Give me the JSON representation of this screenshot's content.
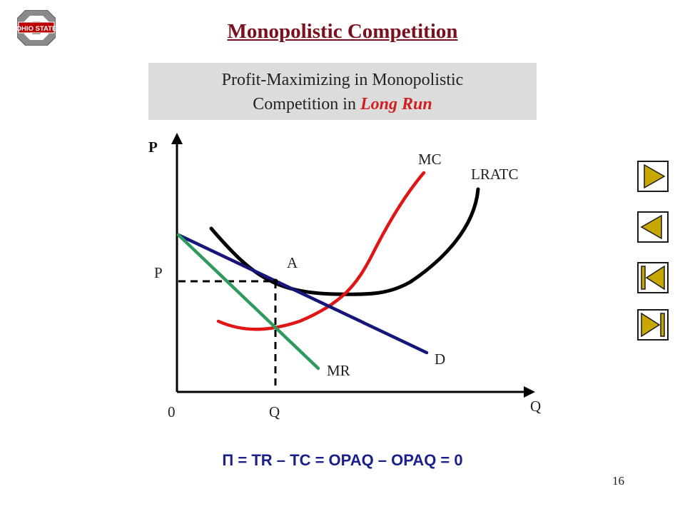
{
  "slide": {
    "title": "Monopolistic Competition",
    "subtitle_line1": "Profit-Maximizing in Monopolistic",
    "subtitle_line2_prefix": "Competition in ",
    "subtitle_line2_emph": "Long Run",
    "formula": "Π = TR – TC = OPAQ – OPAQ = 0",
    "page_number": "16",
    "logo": {
      "icon": "ohio-state-block-o-logo",
      "text": "OHIO STATE",
      "color": "#bb0000"
    }
  },
  "diagram": {
    "axis_y_label": "P",
    "axis_x_label": "Q",
    "origin_label": "0",
    "price_label": "P",
    "quantity_label": "Q",
    "point_label": "A",
    "curves": {
      "mc": {
        "label": "MC",
        "color": "#e01515"
      },
      "lratc": {
        "label": "LRATC",
        "color": "#000000"
      },
      "demand": {
        "label": "D",
        "color": "#15157a"
      },
      "mr": {
        "label": "MR",
        "color": "#2e9a5e"
      }
    }
  },
  "nav_buttons": [
    {
      "name": "next-slide-button",
      "icon": "play-right-icon"
    },
    {
      "name": "previous-slide-button",
      "icon": "play-left-icon"
    },
    {
      "name": "first-slide-button",
      "icon": "skip-to-start-icon"
    },
    {
      "name": "last-slide-button",
      "icon": "skip-to-end-icon"
    }
  ],
  "colors": {
    "nav_fill": "#c8a800",
    "nav_border": "#1a1a1a",
    "title": "#7a0f1d",
    "formula": "#1a1f8c"
  }
}
